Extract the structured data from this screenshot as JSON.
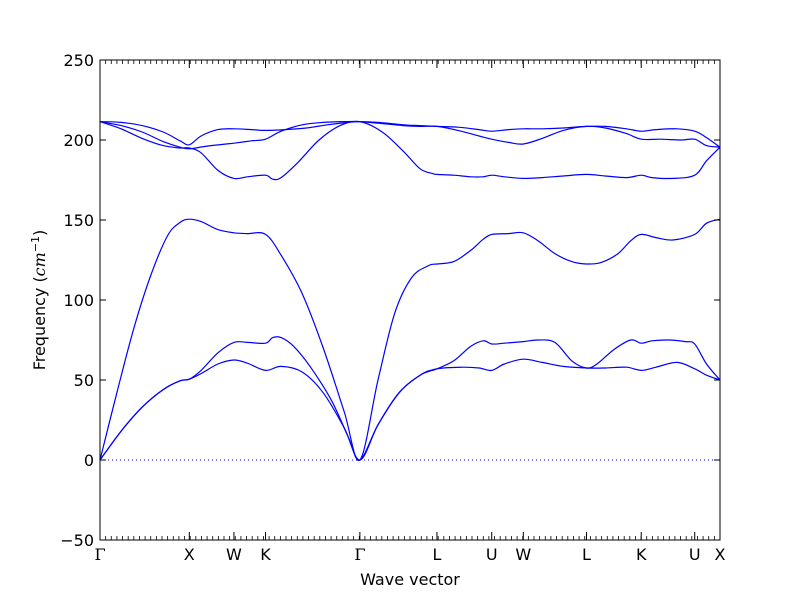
{
  "chart_data": {
    "type": "line",
    "title": "",
    "xlabel": "Wave vector",
    "ylabel": "Frequency (cm⁻¹)",
    "ylabel_main": "Frequency (",
    "ylabel_unit": "cm",
    "ylabel_exp": "−1",
    "ylabel_close": ")",
    "ylim": [
      -50,
      250
    ],
    "yticks": [
      -50,
      0,
      50,
      100,
      150,
      200,
      250
    ],
    "ytick_labels": [
      "−50",
      "0",
      "50",
      "100",
      "150",
      "200",
      "250"
    ],
    "xlim": [
      0,
      14.72
    ],
    "high_symmetry_points": [
      {
        "label": "Γ",
        "x": 0
      },
      {
        "label": "X",
        "x": 2.12
      },
      {
        "label": "W",
        "x": 3.18
      },
      {
        "label": "K",
        "x": 3.93
      },
      {
        "label": "Γ",
        "x": 6.17
      },
      {
        "label": "L",
        "x": 8.0
      },
      {
        "label": "U",
        "x": 9.3
      },
      {
        "label": "W",
        "x": 10.05
      },
      {
        "label": "L",
        "x": 11.55
      },
      {
        "label": "K",
        "x": 12.85
      },
      {
        "label": "U",
        "x": 14.12
      },
      {
        "label": "X",
        "x": 14.72
      }
    ],
    "zero_line": true,
    "line_color": "#0000ff",
    "series": [
      {
        "x": [
          0,
          0.5,
          1.0,
          1.5,
          1.9,
          2.12,
          2.4,
          2.8,
          3.18,
          3.5,
          3.93,
          4.3,
          4.8,
          5.3,
          5.8,
          6.17,
          6.6,
          7.1,
          7.6,
          8.0,
          8.6,
          9.0,
          9.3,
          9.6,
          10.05,
          10.5,
          11.0,
          11.55,
          12.0,
          12.5,
          12.85,
          13.2,
          13.7,
          14.12,
          14.4,
          14.72
        ],
        "y": [
          0,
          18,
          33,
          44,
          49.5,
          50.5,
          54,
          60,
          62.5,
          60.5,
          56,
          58.5,
          55,
          42,
          20,
          0,
          22,
          42,
          53,
          57,
          58,
          57.5,
          56,
          60,
          63,
          61,
          58.5,
          57.5,
          57.5,
          58,
          56,
          58,
          61,
          57,
          53,
          50
        ]
      },
      {
        "x": [
          0,
          0.5,
          1.0,
          1.5,
          1.9,
          2.12,
          2.4,
          2.8,
          3.18,
          3.5,
          3.93,
          4.1,
          4.3,
          4.6,
          5.0,
          5.5,
          5.9,
          6.17,
          6.6,
          7.1,
          7.6,
          8.0,
          8.4,
          8.8,
          9.1,
          9.3,
          9.6,
          10.05,
          10.4,
          10.8,
          11.2,
          11.55,
          11.8,
          12.2,
          12.6,
          12.85,
          13.1,
          13.5,
          13.9,
          14.12,
          14.4,
          14.72
        ],
        "y": [
          0,
          18,
          33,
          44,
          49.5,
          50.5,
          56,
          67,
          73.5,
          73.5,
          73,
          76.5,
          76.5,
          71,
          58,
          37,
          14,
          0,
          22,
          42,
          53,
          57,
          62,
          71,
          74.5,
          72.5,
          73,
          74,
          75,
          73.5,
          62,
          57.5,
          60,
          69,
          75,
          73,
          74.5,
          75,
          74,
          72.5,
          60,
          50
        ]
      },
      {
        "x": [
          0,
          0.4,
          0.8,
          1.2,
          1.6,
          1.9,
          2.12,
          2.4,
          2.8,
          3.18,
          3.5,
          3.93,
          4.3,
          4.8,
          5.3,
          5.8,
          6.17,
          6.6,
          7.0,
          7.4,
          7.8,
          8.0,
          8.4,
          8.8,
          9.1,
          9.3,
          9.7,
          10.05,
          10.4,
          10.8,
          11.2,
          11.55,
          11.9,
          12.3,
          12.6,
          12.85,
          13.2,
          13.6,
          14.12,
          14.4,
          14.72
        ],
        "y": [
          0,
          42,
          82,
          115,
          140,
          148.5,
          150.5,
          149,
          144,
          142,
          141.5,
          141,
          128,
          104,
          70,
          30,
          0,
          50,
          92,
          114,
          121.5,
          122.5,
          124,
          131,
          138,
          141,
          141.5,
          142,
          137,
          129,
          124,
          122.5,
          123.5,
          129,
          137,
          141,
          139,
          137.5,
          141,
          148,
          150.5
        ]
      },
      {
        "x": [
          0,
          0.5,
          1.0,
          1.5,
          1.9,
          2.12,
          2.4,
          2.8,
          3.18,
          3.5,
          3.93,
          4.1,
          4.3,
          4.7,
          5.2,
          5.7,
          6.17,
          6.7,
          7.2,
          7.6,
          7.9,
          8.0,
          8.4,
          8.8,
          9.1,
          9.3,
          9.6,
          10.05,
          10.5,
          11.0,
          11.55,
          12.0,
          12.5,
          12.85,
          13.1,
          13.6,
          14.12,
          14.4,
          14.72
        ],
        "y": [
          211.5,
          207,
          201,
          196.5,
          195,
          195,
          192,
          181,
          176,
          177,
          178,
          175.5,
          176.5,
          186,
          200,
          209,
          211.5,
          205,
          193,
          182,
          179,
          178.5,
          178,
          177,
          177,
          178,
          177,
          176,
          176.5,
          177.5,
          178.5,
          177.5,
          176.5,
          178,
          176.5,
          176,
          178,
          187,
          195.5
        ]
      },
      {
        "x": [
          0,
          0.5,
          1.0,
          1.5,
          1.9,
          2.12,
          2.5,
          3.0,
          3.18,
          3.6,
          3.93,
          4.3,
          4.8,
          5.3,
          5.8,
          6.17,
          6.6,
          7.2,
          7.6,
          8.0,
          8.5,
          9.0,
          9.3,
          9.7,
          10.05,
          10.5,
          11.0,
          11.55,
          12.0,
          12.5,
          12.85,
          13.3,
          13.8,
          14.12,
          14.4,
          14.72
        ],
        "y": [
          211.5,
          209,
          205,
          199,
          195.5,
          194.5,
          196,
          197.5,
          198,
          199.5,
          200.5,
          205.5,
          209.5,
          211,
          211.5,
          211.5,
          210.5,
          209,
          208.5,
          208.5,
          206,
          202.5,
          200.5,
          198.5,
          197.5,
          201,
          206,
          208.5,
          207.5,
          204,
          200.5,
          200.5,
          200,
          200.5,
          196.5,
          195.5
        ]
      },
      {
        "x": [
          0,
          0.5,
          1.0,
          1.5,
          1.9,
          2.12,
          2.4,
          2.8,
          3.18,
          3.6,
          3.93,
          4.4,
          4.9,
          5.4,
          5.9,
          6.17,
          6.6,
          7.2,
          7.6,
          8.0,
          8.5,
          9.0,
          9.3,
          9.7,
          10.05,
          10.5,
          11.0,
          11.55,
          12.0,
          12.5,
          12.85,
          13.2,
          13.7,
          14.12,
          14.4,
          14.72
        ],
        "y": [
          211.5,
          211,
          209,
          205,
          199.5,
          197,
          202.5,
          206.5,
          207,
          206.5,
          206,
          206.5,
          207.5,
          209.5,
          211,
          211.5,
          211,
          209.5,
          209,
          208.5,
          208,
          206.5,
          205.5,
          206.5,
          207,
          207,
          207.5,
          208.5,
          208.5,
          207,
          205.5,
          206.5,
          207,
          205.5,
          201.5,
          195.5
        ]
      }
    ]
  }
}
